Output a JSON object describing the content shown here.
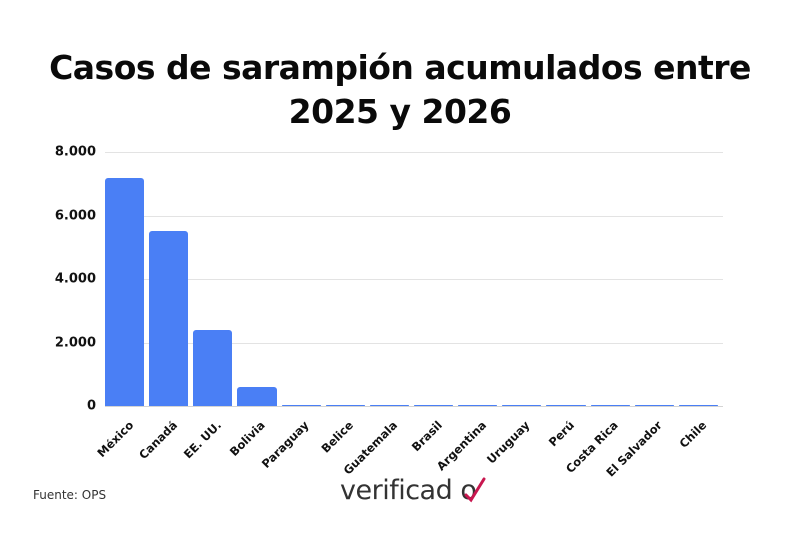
{
  "title": "Casos de sarampión acumulados entre 2025 y 2026",
  "footer": {
    "source": "Fuente: OPS",
    "logo_text": "verificado",
    "logo_accent_color": "#c8174f"
  },
  "colors": {
    "bar": "#4a7ff5",
    "grid": "#e3e3e3"
  },
  "chart_data": {
    "type": "bar",
    "title": "Casos de sarampión acumulados entre 2025 y 2026",
    "xlabel": "",
    "ylabel": "",
    "categories": [
      "México",
      "Canadá",
      "EE. UU.",
      "Bolivia",
      "Paraguay",
      "Belice",
      "Guatemala",
      "Brasil",
      "Argentina",
      "Uruguay",
      "Perú",
      "Costa Rica",
      "El Salvador",
      "Chile"
    ],
    "values": [
      7180,
      5510,
      2400,
      600,
      45,
      40,
      40,
      35,
      35,
      15,
      5,
      5,
      2,
      1
    ],
    "ylim": [
      0,
      8000
    ],
    "yticks": [
      0,
      2000,
      4000,
      6000,
      8000
    ],
    "ytick_labels": [
      "0",
      "2.000",
      "4.000",
      "6.000",
      "8.000"
    ],
    "grid": true,
    "legend": null,
    "source": "Fuente: OPS"
  }
}
